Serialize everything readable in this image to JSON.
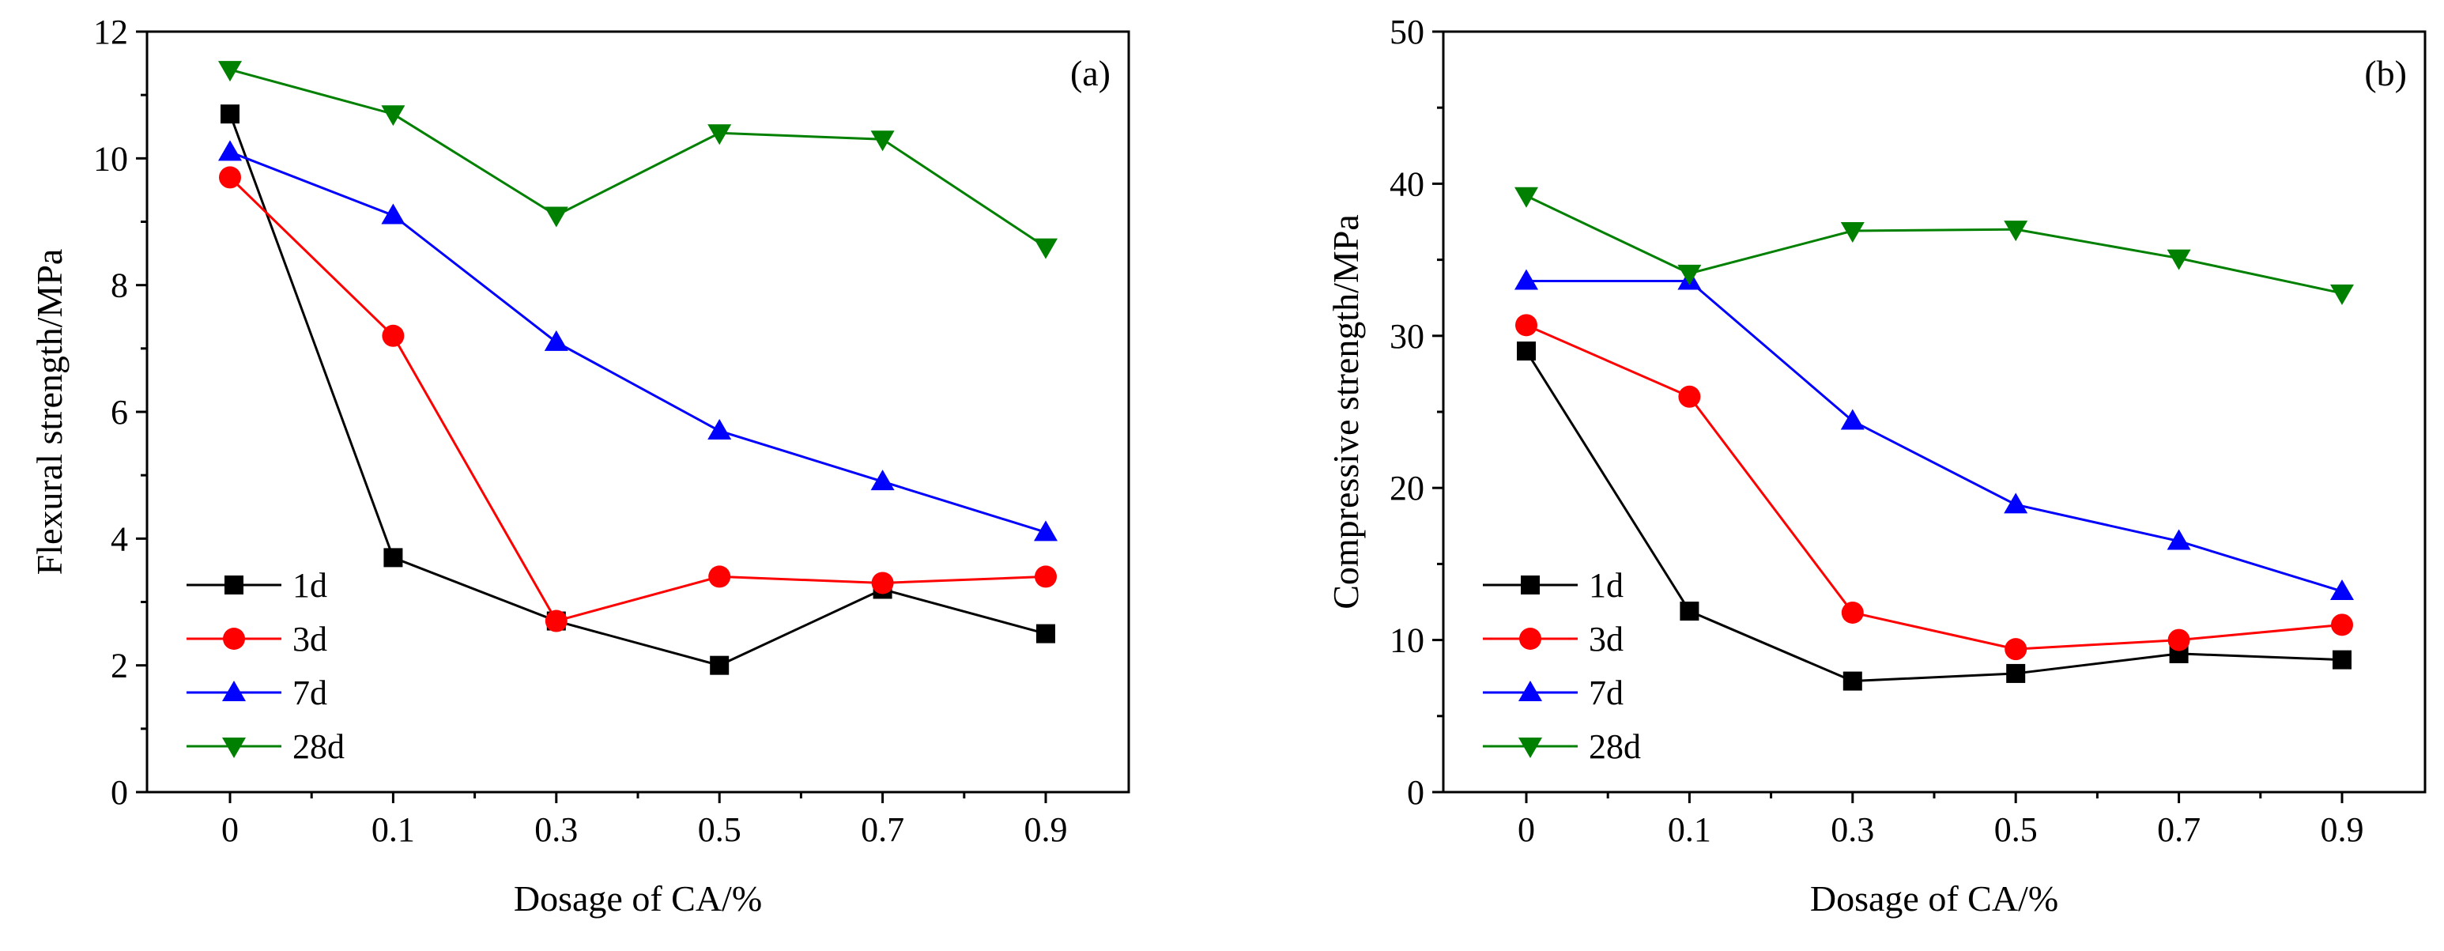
{
  "colors": {
    "1d": "#000000",
    "3d": "#ff0000",
    "7d": "#0000ff",
    "28d": "#008000"
  },
  "chart_data": [
    {
      "type": "line",
      "panel_label": "(a)",
      "title": "",
      "xlabel": "Dosage of CA/%",
      "ylabel": "Flexural strength/MPa",
      "categories": [
        "0",
        "0.1",
        "0.3",
        "0.5",
        "0.7",
        "0.9"
      ],
      "ylim": [
        0,
        12
      ],
      "yticks": [
        "0",
        "2",
        "4",
        "6",
        "8",
        "10",
        "12"
      ],
      "legend_position": "bottom-left",
      "series": [
        {
          "name": "1d",
          "marker": "square",
          "values": [
            10.7,
            3.7,
            2.7,
            2.0,
            3.2,
            2.5
          ]
        },
        {
          "name": "3d",
          "marker": "circle",
          "values": [
            9.7,
            7.2,
            2.7,
            3.4,
            3.3,
            3.4
          ]
        },
        {
          "name": "7d",
          "marker": "triangle-up",
          "values": [
            10.1,
            9.1,
            7.1,
            5.7,
            4.9,
            4.1
          ]
        },
        {
          "name": "28d",
          "marker": "triangle-down",
          "values": [
            11.4,
            10.7,
            9.1,
            10.4,
            10.3,
            8.6
          ]
        }
      ]
    },
    {
      "type": "line",
      "panel_label": "(b)",
      "title": "",
      "xlabel": "Dosage of CA/%",
      "ylabel": "Compressive strength/MPa",
      "categories": [
        "0",
        "0.1",
        "0.3",
        "0.5",
        "0.7",
        "0.9"
      ],
      "ylim": [
        0,
        50
      ],
      "yticks": [
        "0",
        "10",
        "20",
        "30",
        "40",
        "50"
      ],
      "legend_position": "bottom-left",
      "series": [
        {
          "name": "1d",
          "marker": "square",
          "values": [
            29.0,
            11.9,
            7.3,
            7.8,
            9.1,
            8.7
          ]
        },
        {
          "name": "3d",
          "marker": "circle",
          "values": [
            30.7,
            26.0,
            11.8,
            9.4,
            10.0,
            11.0
          ]
        },
        {
          "name": "7d",
          "marker": "triangle-up",
          "values": [
            33.6,
            33.6,
            24.4,
            18.9,
            16.5,
            13.2
          ]
        },
        {
          "name": "28d",
          "marker": "triangle-down",
          "values": [
            39.2,
            34.1,
            36.9,
            37.0,
            35.1,
            32.8
          ]
        }
      ]
    }
  ]
}
